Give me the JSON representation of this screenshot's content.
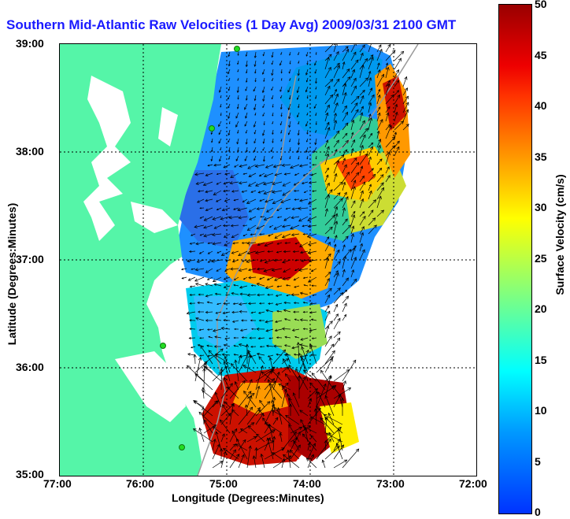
{
  "title": "Southern Mid-Atlantic Raw Velocities (1 Day Avg) 2009/03/31 2100 GMT",
  "xlabel": "Longitude (Degrees:Minutes)",
  "ylabel": "Latitude (Degrees:Minutes)",
  "x_ticks": [
    "77:00",
    "76:00",
    "75:00",
    "74:00",
    "73:00",
    "72:00"
  ],
  "y_ticks": [
    "39:00",
    "38:00",
    "37:00",
    "36:00",
    "35:00"
  ],
  "colorbar": {
    "label": "Surface Velocity (cm/s)",
    "ticks": [
      "0",
      "5",
      "10",
      "15",
      "20",
      "25",
      "30",
      "35",
      "40",
      "45",
      "50"
    ],
    "range": [
      0,
      50
    ]
  },
  "colors": {
    "land": "#55f5a8",
    "title": "#1a1aff",
    "station": "#22dd22",
    "arrows": "#000000"
  }
}
